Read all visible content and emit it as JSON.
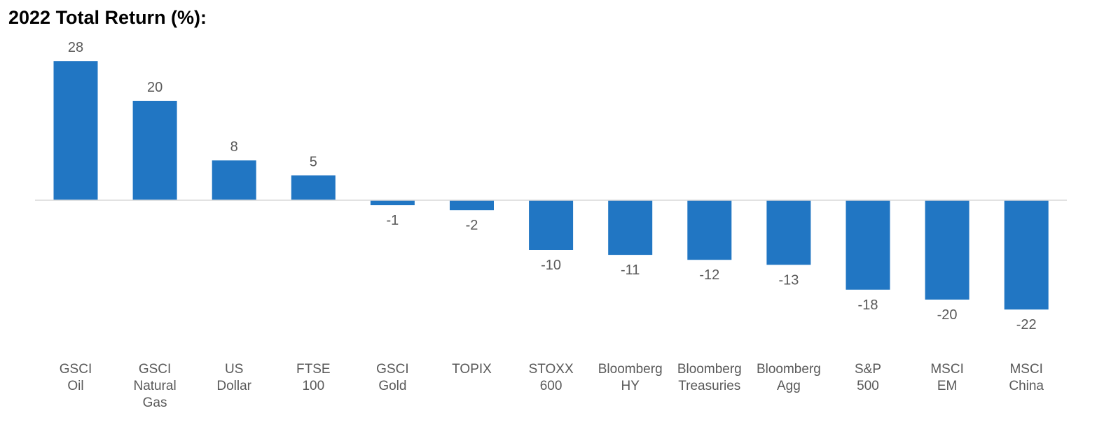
{
  "title": "2022 Total Return (%):",
  "chart_data": {
    "type": "bar",
    "title": "2022 Total Return (%):",
    "categories": [
      [
        "GSCI",
        "Oil"
      ],
      [
        "GSCI",
        "Natural",
        "Gas"
      ],
      [
        "US",
        "Dollar"
      ],
      [
        "FTSE",
        "100"
      ],
      [
        "GSCI",
        "Gold"
      ],
      [
        "TOPIX"
      ],
      [
        "STOXX",
        "600"
      ],
      [
        "Bloomberg",
        "HY"
      ],
      [
        "Bloomberg",
        "Treasuries"
      ],
      [
        "Bloomberg",
        "Agg"
      ],
      [
        "S&P",
        "500"
      ],
      [
        "MSCI",
        "EM"
      ],
      [
        "MSCI",
        "China"
      ]
    ],
    "values": [
      28,
      20,
      8,
      5,
      -1,
      -2,
      -10,
      -11,
      -12,
      -13,
      -18,
      -20,
      -22
    ],
    "value_labels": [
      "28",
      "20",
      "8",
      "5",
      "-1",
      "-2",
      "-10",
      "-11",
      "-12",
      "-13",
      "-18",
      "-20",
      "-22"
    ],
    "xlabel": "",
    "ylabel": "",
    "ylim": [
      -22,
      28
    ],
    "grid": false,
    "legend": "none",
    "bar_color": "#2176C3",
    "axis_color": "#D9D9D9",
    "label_color": "#595959"
  }
}
